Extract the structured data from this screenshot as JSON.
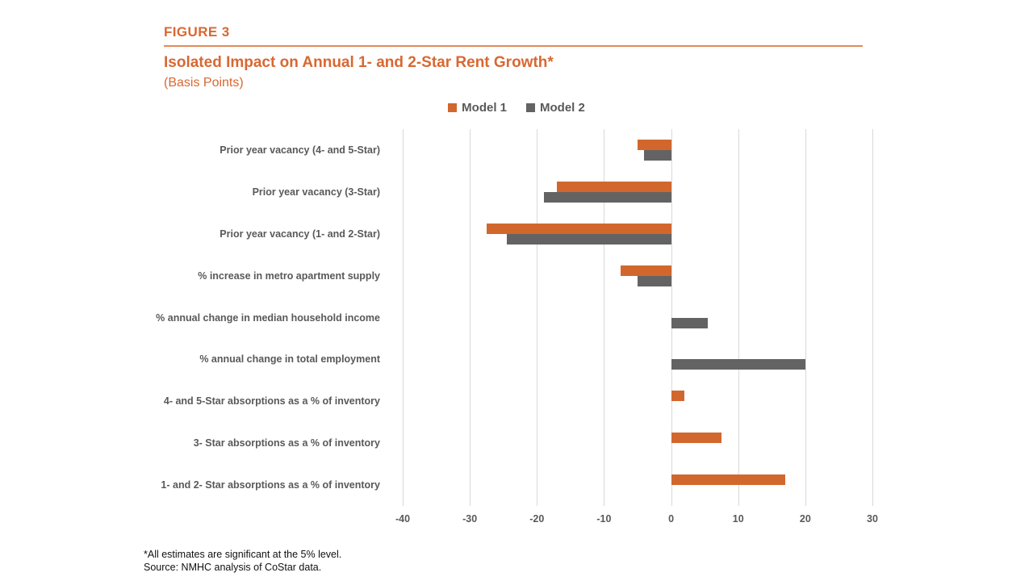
{
  "header": {
    "figure_label": "FIGURE 3",
    "title": "Isolated Impact on Annual 1- and 2-Star Rent Growth*",
    "subtitle": "(Basis Points)"
  },
  "legend": [
    {
      "label": "Model 1",
      "color": "#D2672E"
    },
    {
      "label": "Model 2",
      "color": "#636363"
    }
  ],
  "footnotes": [
    "*All estimates are significant at the 5% level.",
    "Source: NMHC analysis of CoStar data."
  ],
  "colors": {
    "accent_orange": "#D86832",
    "bar_orange": "#D2672E",
    "bar_gray": "#636363",
    "gridline": "#D9D9D9",
    "label_gray": "#595959"
  },
  "chart_data": {
    "type": "bar",
    "orientation": "horizontal",
    "title": "Isolated Impact on Annual 1- and 2-Star Rent Growth*",
    "units_label": "(Basis Points)",
    "categories": [
      "Prior year vacancy (4- and 5-Star)",
      "Prior year vacancy (3-Star)",
      "Prior year vacancy (1- and 2-Star)",
      "% increase in metro apartment supply",
      "% annual change in median household income",
      "% annual change in total employment",
      "4- and 5-Star absorptions as a % of inventory",
      "3- Star absorptions as a % of inventory",
      "1- and 2- Star absorptions as a % of inventory"
    ],
    "series": [
      {
        "name": "Model 1",
        "color": "#D2672E",
        "values": [
          -5,
          -17,
          -27.5,
          -7.5,
          null,
          null,
          2,
          7.5,
          17
        ]
      },
      {
        "name": "Model 2",
        "color": "#636363",
        "values": [
          -4,
          -19,
          -24.5,
          -5,
          5.5,
          20,
          null,
          null,
          null
        ]
      }
    ],
    "xlim": [
      -40,
      30
    ],
    "xticks": [
      -40,
      -30,
      -20,
      -10,
      0,
      10,
      20,
      30
    ],
    "grid": "vertical",
    "legend_position": "top-center"
  }
}
